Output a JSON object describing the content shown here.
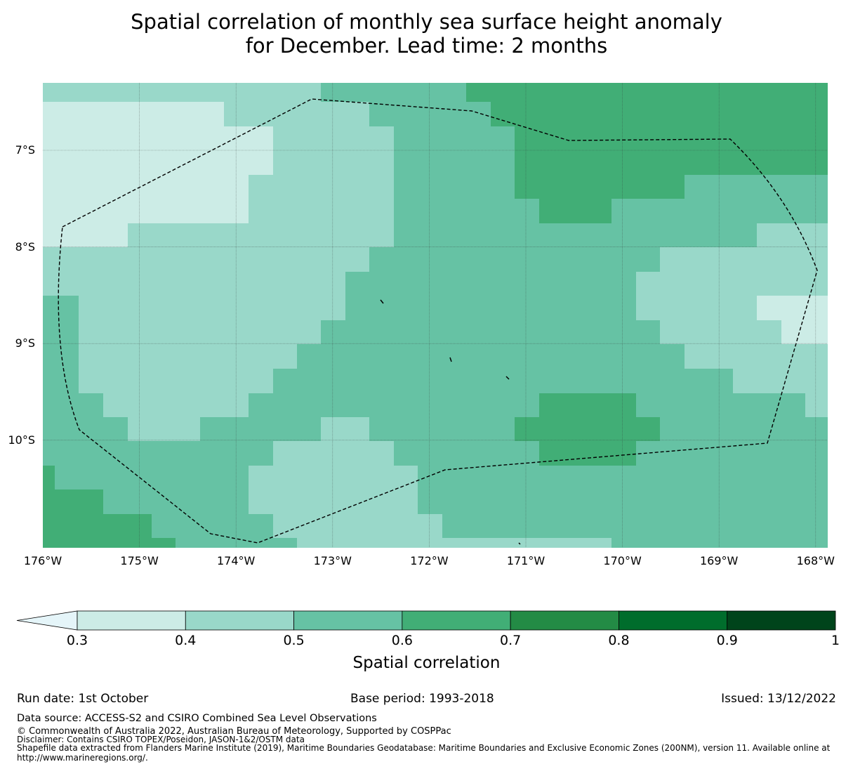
{
  "title": {
    "line1": "Spatial correlation of monthly sea surface height anomaly",
    "line2": "for December. Lead time: 2 months"
  },
  "map": {
    "lon_ticks": [
      "176°W",
      "175°W",
      "174°W",
      "173°W",
      "172°W",
      "171°W",
      "170°W",
      "169°W",
      "168°W"
    ],
    "lat_ticks": [
      "7°S",
      "8°S",
      "9°S",
      "10°S"
    ],
    "lon_range": [
      -176,
      -167.9
    ],
    "lat_range": [
      -11.1,
      -6.3
    ],
    "boundary_style": "dashed",
    "grid": "dotted"
  },
  "colorbar": {
    "title": "Spatial correlation",
    "ticks": [
      "0.3",
      "0.4",
      "0.5",
      "0.6",
      "0.7",
      "0.8",
      "0.9",
      "1"
    ],
    "levels": [
      0.3,
      0.4,
      0.5,
      0.6,
      0.7,
      0.8,
      0.9,
      1.0
    ],
    "colors": [
      "#ccece6",
      "#99d8c9",
      "#66c2a4",
      "#41ae76",
      "#238b45",
      "#006d2c",
      "#00441b"
    ],
    "extend_color": "#e5f5f9",
    "extend": "min"
  },
  "footer": {
    "run_date": "Run date: 1st October",
    "base_period": "Base period: 1993-2018",
    "issued": "Issued: 13/12/2022",
    "data_source": "Data source: ACCESS-S2 and CSIRO Combined Sea Level Observations",
    "copyright": "© Commonwealth of Australia 2022, Australian Bureau of Meteorology, Supported by COSPPac",
    "disclaimer": "Disclaimer: Contains CSIRO TOPEX/Poseidon, JASON-1&2/OSTM data",
    "shapefile_line1": "Shapefile data extracted from Flanders Marine Institute (2019), Maritime Boundaries Geodatabase: Maritime Boundaries and Exclusive Economic Zones (200NM), version 11. Available online at",
    "shapefile_line2": "http://www.marineregions.org/."
  }
}
